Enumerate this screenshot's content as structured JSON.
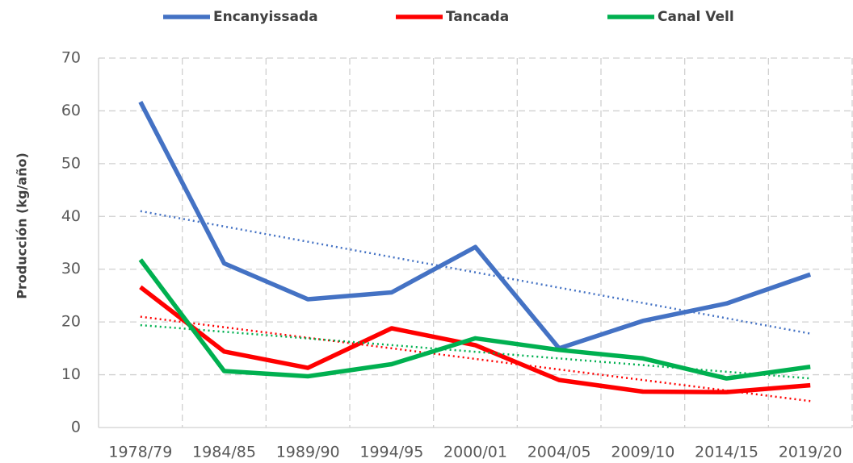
{
  "chart_data": {
    "type": "line",
    "y_label": "Producción (kg/año)",
    "categories": [
      "1978/79",
      "1984/85",
      "1989/90",
      "1994/95",
      "2000/01",
      "2004/05",
      "2009/10",
      "2014/15",
      "2019/20"
    ],
    "series": [
      {
        "name": "Encanyissada",
        "color": "#4472c4",
        "values": [
          61.7,
          31.1,
          24.3,
          25.6,
          34.2,
          15.0,
          20.2,
          23.5,
          29.0
        ],
        "trend": [
          41,
          17.8
        ]
      },
      {
        "name": "Tancada",
        "color": "#ff0000",
        "values": [
          26.6,
          14.4,
          11.3,
          18.8,
          15.6,
          9.0,
          6.8,
          6.7,
          8.0
        ],
        "trend": [
          21,
          5
        ]
      },
      {
        "name": "Canal Vell",
        "color": "#00b050",
        "values": [
          31.8,
          10.7,
          9.7,
          12.0,
          16.9,
          14.7,
          13.1,
          9.3,
          11.5
        ],
        "trend": [
          19.4,
          9.3
        ]
      }
    ],
    "ylim": [
      0,
      70
    ],
    "yticks": [
      0,
      10,
      20,
      30,
      40,
      50,
      60,
      70
    ],
    "grid": true,
    "legend": "top"
  }
}
